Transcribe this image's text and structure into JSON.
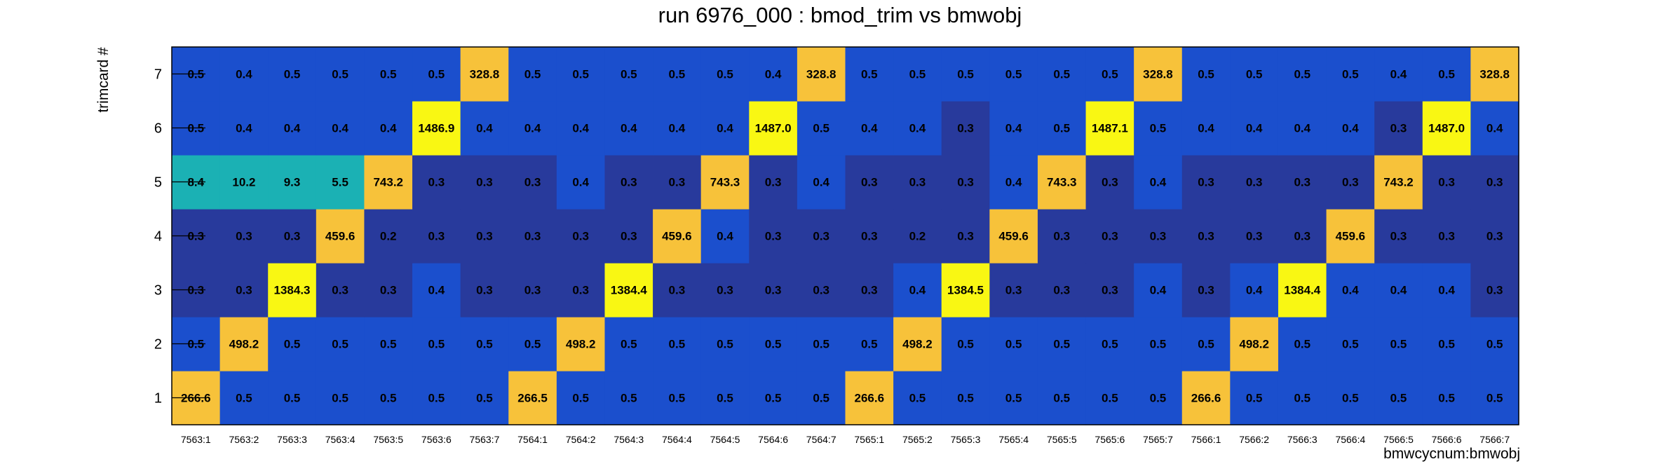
{
  "chart_data": {
    "type": "heatmap",
    "title": "run 6976_000 : bmod_trim vs bmwobj",
    "xlabel": "bmwcycnum:bmwobj",
    "ylabel": "trimcard #",
    "x_categories": [
      "7563:1",
      "7563:2",
      "7563:3",
      "7563:4",
      "7563:5",
      "7563:6",
      "7563:7",
      "7564:1",
      "7564:2",
      "7564:3",
      "7564:4",
      "7564:5",
      "7564:6",
      "7564:7",
      "7565:1",
      "7565:2",
      "7565:3",
      "7565:4",
      "7565:5",
      "7565:6",
      "7565:7",
      "7566:1",
      "7566:2",
      "7566:3",
      "7566:4",
      "7566:5",
      "7566:6",
      "7566:7"
    ],
    "y_categories": [
      "1",
      "2",
      "3",
      "4",
      "5",
      "6",
      "7"
    ],
    "values": [
      [
        266.6,
        0.5,
        0.5,
        0.5,
        0.5,
        0.5,
        0.5,
        266.5,
        0.5,
        0.5,
        0.5,
        0.5,
        0.5,
        0.5,
        266.6,
        0.5,
        0.5,
        0.5,
        0.5,
        0.5,
        0.5,
        266.6,
        0.5,
        0.5,
        0.5,
        0.5,
        0.5,
        0.5
      ],
      [
        0.5,
        498.2,
        0.5,
        0.5,
        0.5,
        0.5,
        0.5,
        0.5,
        498.2,
        0.5,
        0.5,
        0.5,
        0.5,
        0.5,
        0.5,
        498.2,
        0.5,
        0.5,
        0.5,
        0.5,
        0.5,
        0.5,
        498.2,
        0.5,
        0.5,
        0.5,
        0.5,
        0.5
      ],
      [
        0.3,
        0.3,
        1384.3,
        0.3,
        0.3,
        0.4,
        0.3,
        0.3,
        0.3,
        1384.4,
        0.3,
        0.3,
        0.3,
        0.3,
        0.3,
        0.4,
        1384.5,
        0.3,
        0.3,
        0.3,
        0.4,
        0.3,
        0.4,
        1384.4,
        0.4,
        0.4,
        0.4,
        0.3
      ],
      [
        0.3,
        0.3,
        0.3,
        459.6,
        0.2,
        0.3,
        0.3,
        0.3,
        0.3,
        0.3,
        459.6,
        0.4,
        0.3,
        0.3,
        0.3,
        0.2,
        0.3,
        459.6,
        0.3,
        0.3,
        0.3,
        0.3,
        0.3,
        0.3,
        459.6,
        0.3,
        0.3,
        0.3
      ],
      [
        8.4,
        10.2,
        9.3,
        5.5,
        743.2,
        0.3,
        0.3,
        0.3,
        0.4,
        0.3,
        0.3,
        743.3,
        0.3,
        0.4,
        0.3,
        0.3,
        0.3,
        0.4,
        743.3,
        0.3,
        0.4,
        0.3,
        0.3,
        0.3,
        0.3,
        743.2,
        0.3,
        0.3
      ],
      [
        0.5,
        0.4,
        0.4,
        0.4,
        0.4,
        1486.9,
        0.4,
        0.4,
        0.4,
        0.4,
        0.4,
        0.4,
        1487.0,
        0.5,
        0.4,
        0.4,
        0.3,
        0.4,
        0.5,
        1487.1,
        0.5,
        0.4,
        0.4,
        0.4,
        0.4,
        0.3,
        1487.0,
        0.4
      ],
      [
        0.5,
        0.4,
        0.5,
        0.5,
        0.5,
        0.5,
        328.8,
        0.5,
        0.5,
        0.5,
        0.5,
        0.5,
        0.4,
        328.8,
        0.5,
        0.5,
        0.5,
        0.5,
        0.5,
        0.5,
        328.8,
        0.5,
        0.5,
        0.5,
        0.5,
        0.4,
        0.5,
        328.8
      ]
    ],
    "grid": false,
    "legend": "none"
  }
}
